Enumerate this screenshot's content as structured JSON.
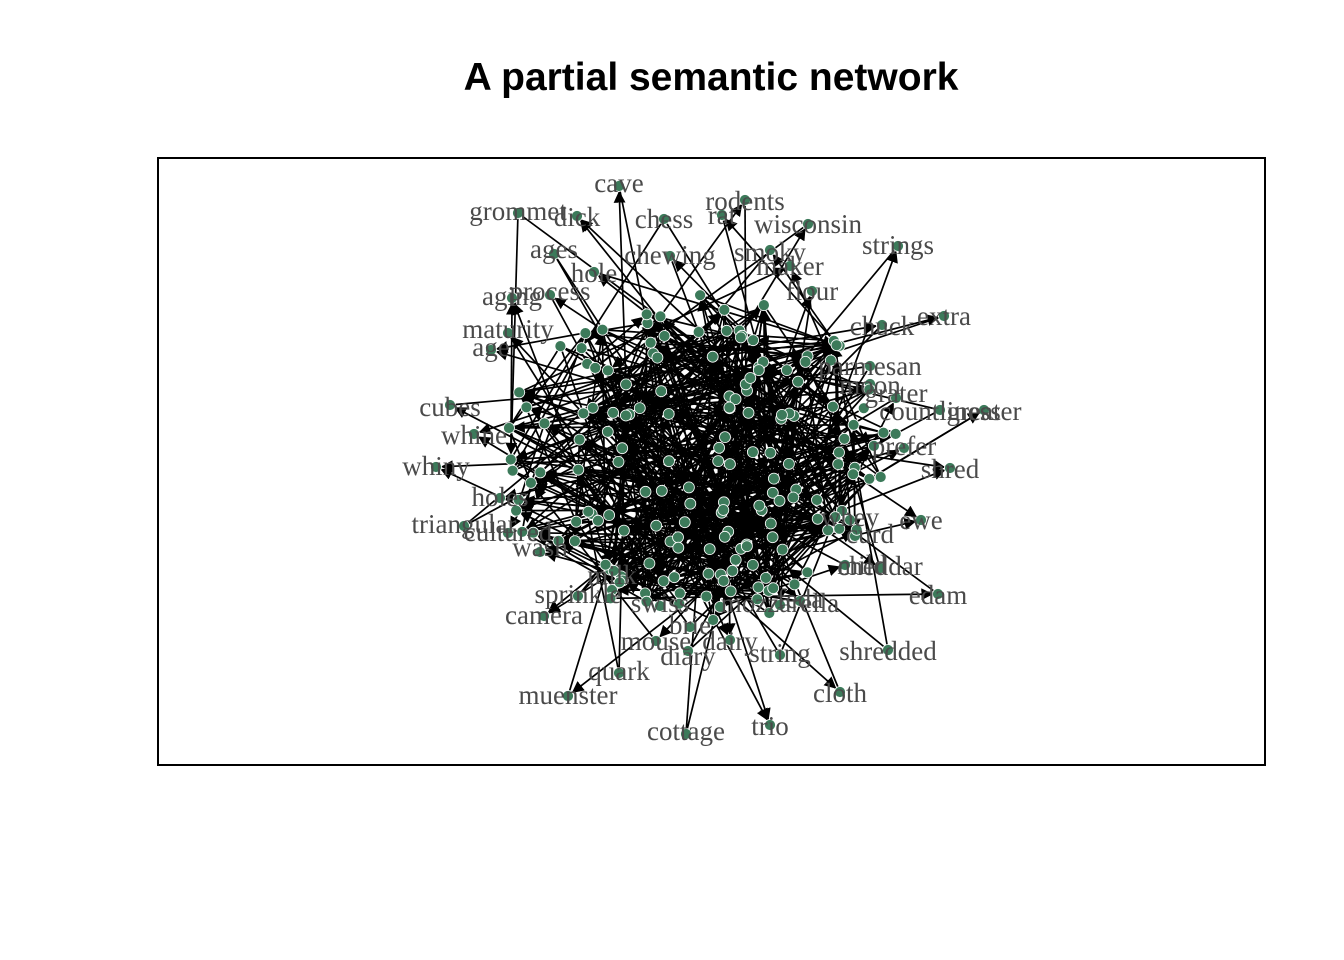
{
  "title": "A partial semantic network",
  "colors": {
    "node": "#3c7a5a",
    "node_stroke": "#2f5f46",
    "edge": "#000000",
    "label": "#4a4a4a",
    "frame": "#000000"
  },
  "labels": [
    "cave",
    "grommet",
    "dick",
    "chess",
    "rodents",
    "rat",
    "wisconsin",
    "ages",
    "chewing",
    "smoky",
    "strings",
    "hole",
    "maker",
    "process",
    "aging",
    "flour",
    "chuck",
    "extra",
    "maturity",
    "age",
    "cubes",
    "whine",
    "whiny",
    "holes",
    "triangular",
    "cultured",
    "wash",
    "sprinkle",
    "camera",
    "muenster",
    "quark",
    "cottage",
    "trio",
    "diary",
    "string",
    "shredded",
    "cloth",
    "edam",
    "ewe",
    "shred",
    "prefer",
    "grater",
    "countliness",
    "greater",
    "moon",
    "parmesan",
    "mild",
    "cheddar",
    "curd",
    "dairy",
    "mouse",
    "mozzarella",
    "swiss",
    "brie",
    "feda",
    "whey",
    "milk"
  ]
}
